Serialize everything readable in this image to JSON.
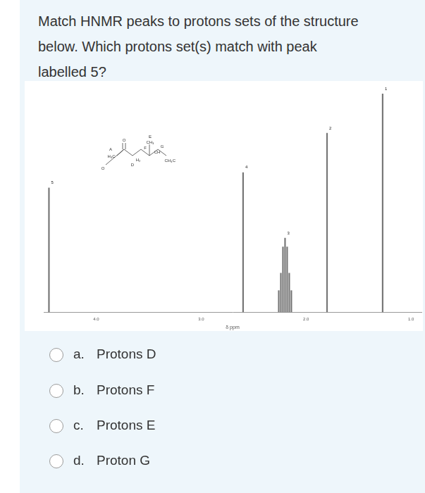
{
  "question_lines": [
    "Match HNMR peaks to protons sets of the structure",
    "below. Which protons set(s) match with peak",
    "labelled 5?"
  ],
  "chart_data": {
    "type": "spectrum",
    "x_label": "δ ppm",
    "xlim": [
      4.5,
      0.9
    ],
    "xticks": [
      {
        "value": 4,
        "label": "4.0"
      },
      {
        "value": 3,
        "label": "3.0"
      },
      {
        "value": 2,
        "label": "2.0"
      },
      {
        "value": 1,
        "label": "1.0"
      }
    ],
    "ylim": [
      0,
      100
    ],
    "tick_labels": "x",
    "grid": false,
    "color": "#777777",
    "peaks": [
      {
        "label": "5",
        "lines": [
          {
            "ppm": 4.45,
            "height": 57
          }
        ]
      },
      {
        "label": "4",
        "lines": [
          {
            "ppm": 2.6,
            "height": 64
          }
        ]
      },
      {
        "label": "3",
        "lines": [
          {
            "ppm": 2.26,
            "height": 10
          },
          {
            "ppm": 2.24,
            "height": 18
          },
          {
            "ppm": 2.22,
            "height": 30
          },
          {
            "ppm": 2.2,
            "height": 34
          },
          {
            "ppm": 2.18,
            "height": 30
          },
          {
            "ppm": 2.16,
            "height": 18
          },
          {
            "ppm": 2.14,
            "height": 10
          }
        ]
      },
      {
        "label": "2",
        "lines": [
          {
            "ppm": 1.8,
            "height": 82
          }
        ]
      },
      {
        "label": "1",
        "lines": [
          {
            "ppm": 1.27,
            "height": 100
          }
        ]
      }
    ]
  },
  "structure": {
    "labels": [
      "A",
      "H₃C",
      "O",
      "O",
      "D",
      "H₂",
      "F",
      "E",
      "CH₃",
      "G",
      "CH",
      "CH₃",
      "C"
    ]
  },
  "options": [
    {
      "letter": "a.",
      "text": "Protons D"
    },
    {
      "letter": "b.",
      "text": "Protons F"
    },
    {
      "letter": "c.",
      "text": "Protons E"
    },
    {
      "letter": "d.",
      "text": "Proton G"
    }
  ]
}
